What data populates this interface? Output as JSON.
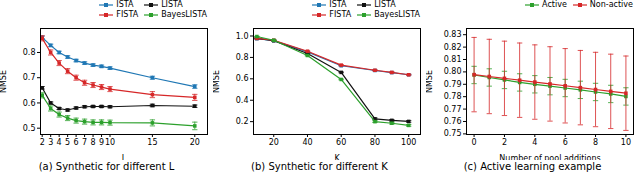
{
  "chart_data": [
    {
      "type": "line",
      "title": "(a) Synthetic for different L",
      "xlabel": "L",
      "ylabel": "NMSE",
      "x": [
        2,
        3,
        4,
        5,
        6,
        7,
        8,
        9,
        10,
        15,
        20
      ],
      "xlim": [
        1.8,
        21.5
      ],
      "xticks": [
        2,
        3,
        4,
        5,
        6,
        7,
        8,
        9,
        10,
        15,
        20
      ],
      "ylim": [
        0.475,
        0.895
      ],
      "yticks": [
        0.5,
        0.6,
        0.7,
        0.8
      ],
      "grid": false,
      "legend": "upper right",
      "marker": "square",
      "line_style": "solid",
      "series": [
        {
          "name": "ISTA",
          "color": "#1f77b4",
          "values": [
            0.86,
            0.828,
            0.8,
            0.782,
            0.768,
            0.758,
            0.75,
            0.745,
            0.738,
            0.7,
            0.665
          ],
          "yerr": [
            0.005,
            0.005,
            0.005,
            0.005,
            0.005,
            0.005,
            0.005,
            0.005,
            0.005,
            0.006,
            0.007
          ]
        },
        {
          "name": "LISTA",
          "color": "#111111",
          "values": [
            0.66,
            0.6,
            0.578,
            0.572,
            0.58,
            0.585,
            0.586,
            0.586,
            0.585,
            0.59,
            0.587
          ],
          "yerr": [
            0.005,
            0.004,
            0.004,
            0.004,
            0.004,
            0.004,
            0.004,
            0.004,
            0.004,
            0.005,
            0.005
          ]
        },
        {
          "name": "FISTA",
          "color": "#d62728",
          "values": [
            0.856,
            0.8,
            0.758,
            0.726,
            0.7,
            0.68,
            0.671,
            0.663,
            0.655,
            0.633,
            0.622
          ],
          "yerr": [
            0.01,
            0.01,
            0.01,
            0.01,
            0.01,
            0.01,
            0.01,
            0.01,
            0.01,
            0.012,
            0.012
          ]
        },
        {
          "name": "BayesLISTA",
          "color": "#2ca02c",
          "values": [
            0.63,
            0.578,
            0.554,
            0.54,
            0.53,
            0.526,
            0.523,
            0.523,
            0.522,
            0.521,
            0.509
          ],
          "yerr": [
            0.01,
            0.01,
            0.01,
            0.01,
            0.01,
            0.01,
            0.01,
            0.01,
            0.01,
            0.012,
            0.015
          ]
        }
      ]
    },
    {
      "type": "line",
      "title": "(b) Synthetic for different K",
      "xlabel": "K",
      "ylabel": "NMSE",
      "x": [
        10,
        20,
        40,
        60,
        80,
        90,
        100
      ],
      "xlim": [
        8,
        107
      ],
      "xticks": [
        20,
        40,
        60,
        80,
        100
      ],
      "ylim": [
        0.08,
        1.07
      ],
      "yticks": [
        0.2,
        0.4,
        0.6,
        0.8,
        {
          "value": 1.0,
          "label": "1.0"
        }
      ],
      "grid": false,
      "legend": "upper right",
      "marker": "square",
      "line_style": "solid",
      "series": [
        {
          "name": "ISTA",
          "color": "#1f77b4",
          "values": [
            0.975,
            0.957,
            0.852,
            0.722,
            0.678,
            0.658,
            0.638
          ],
          "yerr": [
            0.004,
            0.004,
            0.004,
            0.004,
            0.004,
            0.004,
            0.004
          ]
        },
        {
          "name": "LISTA",
          "color": "#111111",
          "values": [
            0.978,
            0.956,
            0.836,
            0.66,
            0.226,
            0.212,
            0.202
          ],
          "yerr": [
            0.004,
            0.004,
            0.004,
            0.004,
            0.008,
            0.008,
            0.008
          ]
        },
        {
          "name": "FISTA",
          "color": "#d62728",
          "values": [
            0.978,
            0.96,
            0.858,
            0.728,
            0.68,
            0.66,
            0.638
          ],
          "yerr": [
            0.004,
            0.004,
            0.004,
            0.004,
            0.004,
            0.004,
            0.004
          ]
        },
        {
          "name": "BayesLISTA",
          "color": "#2ca02c",
          "values": [
            0.995,
            0.96,
            0.818,
            0.594,
            0.2,
            0.185,
            0.165
          ],
          "yerr": [
            0.002,
            0.004,
            0.004,
            0.004,
            0.008,
            0.008,
            0.008
          ]
        }
      ]
    },
    {
      "type": "line",
      "title": "(c) Active learning example",
      "xlabel": "Number of pool additions",
      "ylabel": "NMSE",
      "x": [
        0,
        1,
        2,
        3,
        4,
        5,
        6,
        7,
        8,
        9,
        10
      ],
      "xlim": [
        -0.5,
        10.5
      ],
      "xticks": [
        0,
        2,
        4,
        6,
        8,
        10
      ],
      "ylim": [
        0.7495,
        0.835
      ],
      "yticks": [
        0.75,
        0.76,
        0.77,
        0.78,
        0.79,
        {
          "value": 0.8,
          "label": "0.80"
        },
        0.81,
        0.82,
        0.83
      ],
      "grid": false,
      "legend": "upper right",
      "marker": "square",
      "line_style": "solid",
      "series": [
        {
          "name": "Active",
          "color": "#2ca02c",
          "values": [
            0.7975,
            0.7955,
            0.7935,
            0.7915,
            0.79,
            0.7885,
            0.787,
            0.7855,
            0.7838,
            0.7822,
            0.7802
          ],
          "yerr": [
            0.007,
            0.007,
            0.007,
            0.007,
            0.007,
            0.007,
            0.007,
            0.007,
            0.007,
            0.007,
            0.007
          ]
        },
        {
          "name": "Non-active",
          "color": "#d62728",
          "values": [
            0.7978,
            0.7963,
            0.7948,
            0.7933,
            0.7918,
            0.7903,
            0.7888,
            0.7873,
            0.7858,
            0.7843,
            0.7828
          ],
          "yerr": [
            0.03,
            0.03,
            0.03,
            0.03,
            0.03,
            0.03,
            0.03,
            0.03,
            0.03,
            0.03,
            0.03
          ]
        }
      ]
    }
  ]
}
